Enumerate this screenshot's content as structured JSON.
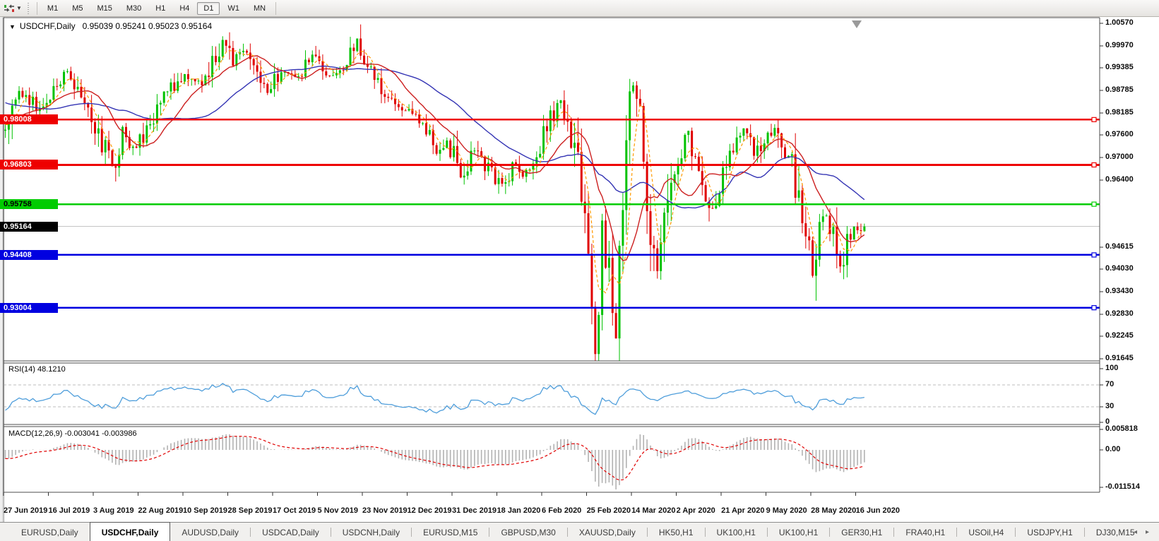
{
  "toolbar": {
    "dropdown_caret": "▼",
    "timeframes": [
      {
        "label": "M1",
        "active": false
      },
      {
        "label": "M5",
        "active": false
      },
      {
        "label": "M15",
        "active": false
      },
      {
        "label": "M30",
        "active": false
      },
      {
        "label": "H1",
        "active": false
      },
      {
        "label": "H4",
        "active": false
      },
      {
        "label": "D1",
        "active": true
      },
      {
        "label": "W1",
        "active": false
      },
      {
        "label": "MN",
        "active": false
      }
    ]
  },
  "chart": {
    "title_caret": "▼",
    "title_symbol": "USDCHF,Daily",
    "title_ohlc": "0.95039 0.95241 0.95023 0.95164"
  },
  "chart_data": {
    "type": "candlestick",
    "symbol": "USDCHF",
    "timeframe": "Daily",
    "ohlc": {
      "open": 0.95039,
      "high": 0.95241,
      "low": 0.95023,
      "close": 0.95164
    },
    "y_range": {
      "min": 0.91645,
      "max": 1.0057
    },
    "y_axis_labels": [
      "1.00570",
      "0.99970",
      "0.99385",
      "0.98785",
      "0.98185",
      "0.97600",
      "0.97000",
      "0.96400",
      "0.94615",
      "0.94030",
      "0.93430",
      "0.92830",
      "0.92245",
      "0.91645"
    ],
    "x_axis_dates": [
      "27 Jun 2019",
      "16 Jul 2019",
      "3 Aug 2019",
      "22 Aug 2019",
      "10 Sep 2019",
      "28 Sep 2019",
      "17 Oct 2019",
      "5 Nov 2019",
      "23 Nov 2019",
      "12 Dec 2019",
      "31 Dec 2019",
      "18 Jan 2020",
      "6 Feb 2020",
      "25 Feb 2020",
      "14 Mar 2020",
      "2 Apr 2020",
      "21 Apr 2020",
      "9 May 2020",
      "28 May 2020",
      "16 Jun 2020"
    ],
    "price_path_anchors": [
      [
        0,
        0.978
      ],
      [
        3,
        0.9855
      ],
      [
        6,
        0.988
      ],
      [
        9,
        0.982
      ],
      [
        13,
        0.9865
      ],
      [
        18,
        0.9925
      ],
      [
        22,
        0.985
      ],
      [
        26,
        0.978
      ],
      [
        31,
        0.968
      ],
      [
        34,
        0.9765
      ],
      [
        38,
        0.972
      ],
      [
        45,
        0.9855
      ],
      [
        52,
        0.9925
      ],
      [
        57,
        0.989
      ],
      [
        63,
        1.0015
      ],
      [
        66,
        0.995
      ],
      [
        70,
        0.9985
      ],
      [
        76,
        0.988
      ],
      [
        80,
        0.9935
      ],
      [
        85,
        0.9915
      ],
      [
        89,
        0.997
      ],
      [
        94,
        0.992
      ],
      [
        99,
        0.9945
      ],
      [
        102,
        1.001
      ],
      [
        105,
        0.9935
      ],
      [
        110,
        0.987
      ],
      [
        116,
        0.983
      ],
      [
        121,
        0.9785
      ],
      [
        125,
        0.9715
      ],
      [
        128,
        0.9755
      ],
      [
        132,
        0.9655
      ],
      [
        136,
        0.9715
      ],
      [
        140,
        0.967
      ],
      [
        144,
        0.962
      ],
      [
        147,
        0.9678
      ],
      [
        150,
        0.9645
      ],
      [
        153,
        0.9695
      ],
      [
        156,
        0.976
      ],
      [
        158,
        0.98
      ],
      [
        161,
        0.985
      ],
      [
        163,
        0.98
      ],
      [
        166,
        0.97
      ],
      [
        168,
        0.956
      ],
      [
        170,
        0.93
      ],
      [
        171,
        0.917
      ],
      [
        173,
        0.948
      ],
      [
        175,
        0.939
      ],
      [
        177,
        0.926
      ],
      [
        179,
        0.96
      ],
      [
        181,
        0.988
      ],
      [
        183,
        0.99
      ],
      [
        185,
        0.97
      ],
      [
        187,
        0.95
      ],
      [
        189,
        0.942
      ],
      [
        191,
        0.956
      ],
      [
        193,
        0.966
      ],
      [
        195,
        0.97
      ],
      [
        198,
        0.9762
      ],
      [
        200,
        0.969
      ],
      [
        203,
        0.961
      ],
      [
        205,
        0.956
      ],
      [
        208,
        0.968
      ],
      [
        211,
        0.973
      ],
      [
        214,
        0.9772
      ],
      [
        217,
        0.97
      ],
      [
        220,
        0.975
      ],
      [
        223,
        0.978
      ],
      [
        226,
        0.97
      ],
      [
        228,
        0.97
      ],
      [
        230,
        0.958
      ],
      [
        232,
        0.948
      ],
      [
        234,
        0.939
      ],
      [
        236,
        0.949
      ],
      [
        238,
        0.9548
      ],
      [
        240,
        0.95
      ],
      [
        242,
        0.942
      ],
      [
        244,
        0.9475
      ],
      [
        246,
        0.9505
      ],
      [
        248,
        0.95
      ],
      [
        249,
        0.9516
      ]
    ],
    "horizontal_lines": [
      {
        "price": 0.98008,
        "label": "0.98008",
        "color": "#ee0000",
        "label_text": "#ffffff"
      },
      {
        "price": 0.96803,
        "label": "0.96803",
        "color": "#ee0000",
        "label_text": "#ffffff"
      },
      {
        "price": 0.95758,
        "label": "0.95758",
        "color": "#00cc00",
        "label_text": "#000000"
      },
      {
        "price": 0.94408,
        "label": "0.94408",
        "color": "#0000e0",
        "label_text": "#ffffff"
      },
      {
        "price": 0.93004,
        "label": "0.93004",
        "color": "#0000e0",
        "label_text": "#ffffff"
      }
    ],
    "current_price": {
      "value": 0.95164,
      "label": "0.95164",
      "line_color": "#c4c4c4",
      "box_bg": "#000000",
      "box_text": "#ffffff"
    },
    "candle_colors": {
      "up": "#00c200",
      "down": "#e00000"
    },
    "moving_averages": [
      {
        "name": "fast",
        "window": 5,
        "color": "#ff9a00",
        "style": "dashed"
      },
      {
        "name": "medium",
        "window": 14,
        "color": "#cc2020",
        "style": "solid"
      },
      {
        "name": "slow",
        "window": 34,
        "color": "#3434b4",
        "style": "solid"
      }
    ],
    "indicators": {
      "rsi": {
        "label": "RSI(14)",
        "current": "48.1210",
        "line_color": "#4f9edb",
        "levels": [
          70,
          30
        ],
        "axis_labels": [
          "100",
          "70",
          "30",
          "0"
        ]
      },
      "macd": {
        "label": "MACD(12,26,9)",
        "current": "-0.003041 -0.003986",
        "axis_top": "0.005818",
        "axis_zero": "0.00",
        "axis_bottom": "-0.011514",
        "histogram_color": "#b2b2b2",
        "signal_color": "#e00000"
      }
    }
  },
  "tabs": {
    "scroll_left": "◂",
    "scroll_right": "▸",
    "items": [
      {
        "label": "EURUSD,Daily",
        "active": false
      },
      {
        "label": "USDCHF,Daily",
        "active": true
      },
      {
        "label": "AUDUSD,Daily",
        "active": false
      },
      {
        "label": "USDCAD,Daily",
        "active": false
      },
      {
        "label": "USDCNH,Daily",
        "active": false
      },
      {
        "label": "EURUSD,M15",
        "active": false
      },
      {
        "label": "GBPUSD,M30",
        "active": false
      },
      {
        "label": "XAUUSD,Daily",
        "active": false
      },
      {
        "label": "HK50,H1",
        "active": false
      },
      {
        "label": "UK100,H1",
        "active": false
      },
      {
        "label": "UK100,H1",
        "active": false
      },
      {
        "label": "GER30,H1",
        "active": false
      },
      {
        "label": "FRA40,H1",
        "active": false
      },
      {
        "label": "USOil,H4",
        "active": false
      },
      {
        "label": "USDJPY,H1",
        "active": false
      },
      {
        "label": "DJ30,M15",
        "active": false
      }
    ]
  }
}
